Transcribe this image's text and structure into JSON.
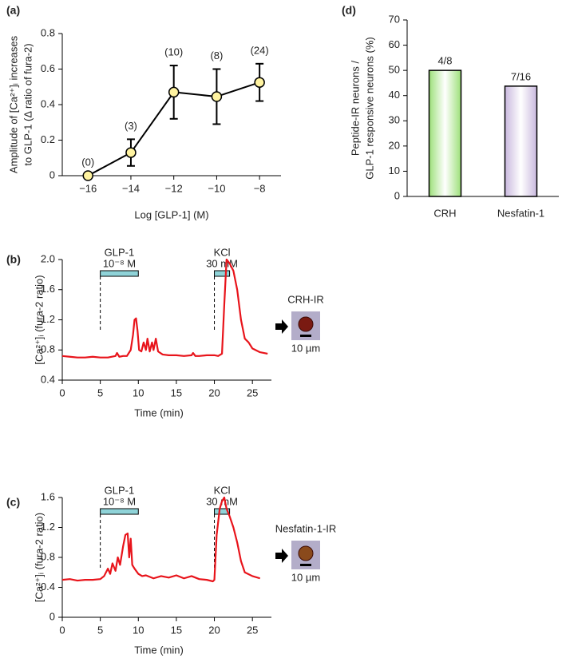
{
  "chart_data": [
    {
      "type": "line",
      "panel_label": "(a)",
      "y_label": [
        "Amplitude of [Ca²⁺]ᵢ increases",
        "to GLP-1 (Δ ratio of fura-2)"
      ],
      "x_label": "Log [GLP-1] (M)",
      "x": [
        -16,
        -14,
        -12,
        -10,
        -8
      ],
      "series": [
        {
          "color": "#000000",
          "marker_color": "#fff3a0",
          "values": [
            0,
            0.13,
            0.47,
            0.445,
            0.525
          ],
          "errors": [
            0,
            0.075,
            0.15,
            0.155,
            0.105
          ],
          "n_labels": [
            "(0)",
            "(3)",
            "(10)",
            "(8)",
            "(24)"
          ]
        }
      ],
      "xlim": [
        -17.2,
        -7
      ],
      "xticks": [
        {
          "value": -16,
          "label": "−16"
        },
        {
          "value": -14,
          "label": "−14"
        },
        {
          "value": -12,
          "label": "−12"
        },
        {
          "value": -10,
          "label": "−10"
        },
        {
          "value": -8,
          "label": "−8"
        }
      ],
      "ylim": [
        0,
        0.8
      ],
      "yticks": [
        0,
        0.2,
        0.4,
        0.6,
        0.8
      ],
      "markers": true
    },
    {
      "type": "bar",
      "panel_label": "(d)",
      "y_label": [
        "Peptide-IR neurons /",
        "GLP-1 responsive neurons (%)"
      ],
      "categories": [
        "CRH",
        "Nesfatin-1"
      ],
      "values": [
        50,
        43.75
      ],
      "value_labels": [
        "4/8",
        "7/16"
      ],
      "colors": [
        "#9de07a",
        "#c9b8de"
      ],
      "ylim": [
        0,
        70
      ],
      "yticks": [
        0,
        10,
        20,
        30,
        40,
        50,
        60,
        70
      ]
    },
    {
      "type": "line",
      "panel_label": "(b)",
      "y_label": [
        "[Ca²⁺]ᵢ (fura-2 ratio)"
      ],
      "x_label": "Time (min)",
      "x": [
        0,
        1,
        2,
        3,
        4,
        5,
        6,
        7,
        7.2,
        7.5,
        8,
        8.5,
        9,
        9.3,
        9.5,
        9.7,
        9.9,
        10.1,
        10.4,
        10.7,
        11,
        11.2,
        11.5,
        11.8,
        12,
        12.3,
        12.6,
        12.9,
        13.2,
        14,
        15,
        16,
        17,
        17.2,
        17.5,
        18,
        19,
        20,
        20.5,
        21,
        21.3,
        21.6,
        22,
        22.5,
        23,
        23.5,
        24,
        24.5,
        25,
        26,
        27
      ],
      "series": [
        {
          "color": "#e8141b",
          "values": [
            0.72,
            0.71,
            0.7,
            0.7,
            0.71,
            0.7,
            0.7,
            0.72,
            0.76,
            0.71,
            0.72,
            0.72,
            0.8,
            1.0,
            1.2,
            1.22,
            1.05,
            0.8,
            0.78,
            0.9,
            0.8,
            0.95,
            0.78,
            0.9,
            0.8,
            0.95,
            0.78,
            0.76,
            0.74,
            0.73,
            0.73,
            0.72,
            0.73,
            0.76,
            0.72,
            0.72,
            0.73,
            0.73,
            0.72,
            0.75,
            1.4,
            2.0,
            1.95,
            1.85,
            1.6,
            1.2,
            0.95,
            0.9,
            0.82,
            0.77,
            0.75
          ]
        }
      ],
      "stimuli": [
        {
          "label": "GLP-1",
          "sublabel": "10⁻⁸ M",
          "start": 5,
          "end": 10
        },
        {
          "label": "KCl",
          "sublabel": "30 mM",
          "start": 20,
          "end": 22
        }
      ],
      "cell_label": "CRH-IR",
      "scale_label": "10 µm",
      "xlim": [
        0,
        27.5
      ],
      "xticks": [
        0,
        5,
        10,
        15,
        20,
        25
      ],
      "ylim": [
        0.4,
        2
      ],
      "yticks": [
        0.4,
        0.8,
        1.2,
        1.6,
        {
          "value": 2,
          "label": "2.0"
        }
      ]
    },
    {
      "type": "line",
      "panel_label": "(c)",
      "y_label": [
        "[Ca²⁺]ᵢ (fura-2 ratio)"
      ],
      "x_label": "Time (min)",
      "x": [
        0,
        1,
        2,
        3,
        4,
        5,
        5.5,
        6,
        6.3,
        6.6,
        7,
        7.3,
        7.6,
        8,
        8.3,
        8.6,
        8.8,
        9,
        9.2,
        9.5,
        10,
        10.5,
        11,
        12,
        13,
        14,
        15,
        16,
        17,
        18,
        19,
        19.8,
        20,
        20.3,
        20.7,
        21,
        21.3,
        21.6,
        22,
        22.5,
        23,
        23.5,
        24,
        25,
        26
      ],
      "series": [
        {
          "color": "#e8141b",
          "values": [
            0.5,
            0.51,
            0.49,
            0.5,
            0.5,
            0.51,
            0.55,
            0.65,
            0.58,
            0.72,
            0.62,
            0.8,
            0.7,
            0.95,
            1.1,
            1.12,
            0.8,
            1.05,
            0.7,
            0.65,
            0.58,
            0.55,
            0.56,
            0.52,
            0.55,
            0.53,
            0.56,
            0.52,
            0.55,
            0.51,
            0.5,
            0.48,
            0.5,
            1.1,
            1.45,
            1.55,
            1.6,
            1.45,
            1.35,
            1.2,
            1.0,
            0.75,
            0.6,
            0.55,
            0.52
          ]
        }
      ],
      "stimuli": [
        {
          "label": "GLP-1",
          "sublabel": "10⁻⁸ M",
          "start": 5,
          "end": 10
        },
        {
          "label": "KCl",
          "sublabel": "30 mM",
          "start": 20,
          "end": 22
        }
      ],
      "cell_label": "Nesfatin-1-IR",
      "scale_label": "10 µm",
      "xlim": [
        0,
        27.5
      ],
      "xticks": [
        0,
        5,
        10,
        15,
        20,
        25
      ],
      "ylim": [
        0,
        1.6
      ],
      "yticks": [
        0,
        0.4,
        0.8,
        1.2,
        1.6
      ]
    }
  ]
}
